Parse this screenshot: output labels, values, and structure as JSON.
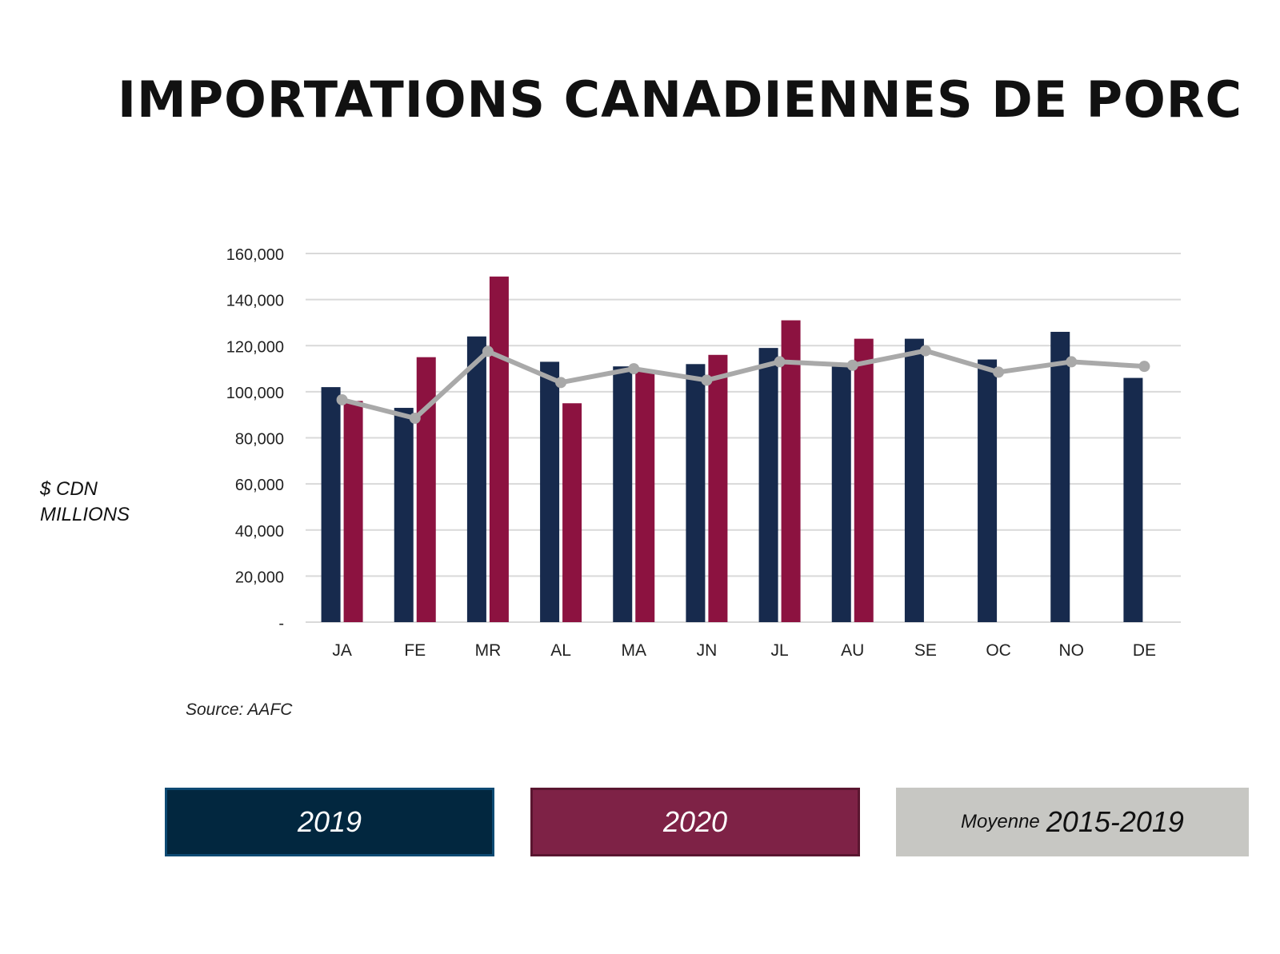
{
  "title": "IMPORTATIONS CANADIENNES DE PORC",
  "source": "Source: AAFC",
  "ylabel_line1": "$ CDN",
  "ylabel_line2": "MILLIONS",
  "legend": {
    "s2019": "2019",
    "s2020": "2020",
    "avg_prefix": "Moyenne",
    "avg_years": "2015-2019"
  },
  "colors": {
    "s2019": "#172a4d",
    "s2020": "#8c1240",
    "avg": "#a9a9a9",
    "legend2019": "#02273f",
    "legend2020": "#7e2246",
    "legendAvg": "#c7c7c3",
    "grid": "#d9d9d9"
  },
  "chart_data": {
    "type": "bar",
    "categories": [
      "JA",
      "FE",
      "MR",
      "AL",
      "MA",
      "JN",
      "JL",
      "AU",
      "SE",
      "OC",
      "NO",
      "DE"
    ],
    "series": [
      {
        "name": "2019",
        "type": "bar",
        "values": [
          102000,
          93000,
          124000,
          113000,
          111000,
          112000,
          119000,
          111000,
          123000,
          114000,
          126000,
          106000
        ]
      },
      {
        "name": "2020",
        "type": "bar",
        "values": [
          96000,
          115000,
          150000,
          95000,
          109000,
          116000,
          131000,
          123000,
          null,
          null,
          null,
          null
        ]
      },
      {
        "name": "Moyenne 2015-2019",
        "type": "line",
        "values": [
          96500,
          88500,
          117500,
          104000,
          110000,
          105000,
          113000,
          111500,
          117800,
          108500,
          113000,
          111000
        ]
      }
    ],
    "ylim": [
      0,
      160000
    ],
    "yticks": [
      0,
      20000,
      40000,
      60000,
      80000,
      100000,
      120000,
      140000,
      160000
    ],
    "ytick_labels": [
      "-",
      "20,000",
      "40,000",
      "60,000",
      "80,000",
      "100,000",
      "120,000",
      "140,000",
      "160,000"
    ],
    "ylabel": "$ CDN MILLIONS",
    "grid": true,
    "legend_position": "bottom"
  }
}
